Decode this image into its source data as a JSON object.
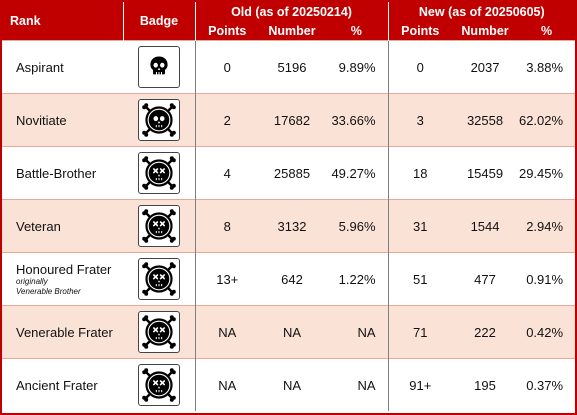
{
  "header": {
    "rank": "Rank",
    "badge": "Badge",
    "old": "Old (as of 20250214)",
    "new": "New (as of 20250605)",
    "points": "Points",
    "number": "Number",
    "percent": "%"
  },
  "rows": [
    {
      "rank": "Aspirant",
      "note_1": "",
      "note_2": "",
      "badge_icon": "skull-badge-icon",
      "old_points": "0",
      "old_number": "5196",
      "old_percent": "9.89%",
      "new_points": "0",
      "new_number": "2037",
      "new_percent": "3.88%"
    },
    {
      "rank": "Novitiate",
      "note_1": "",
      "note_2": "",
      "badge_icon": "skull-crossbones-ring-badge-icon",
      "old_points": "2",
      "old_number": "17682",
      "old_percent": "33.66%",
      "new_points": "3",
      "new_number": "32558",
      "new_percent": "62.02%"
    },
    {
      "rank": "Battle-Brother",
      "note_1": "",
      "note_2": "",
      "badge_icon": "skull-crossbones-ring-badge-icon",
      "old_points": "4",
      "old_number": "25885",
      "old_percent": "49.27%",
      "new_points": "18",
      "new_number": "15459",
      "new_percent": "29.45%"
    },
    {
      "rank": "Veteran",
      "note_1": "",
      "note_2": "",
      "badge_icon": "skull-crossbones-ring-badge-icon",
      "old_points": "8",
      "old_number": "3132",
      "old_percent": "5.96%",
      "new_points": "31",
      "new_number": "1544",
      "new_percent": "2.94%"
    },
    {
      "rank": "Honoured Frater",
      "note_1": "originally",
      "note_2": "Venerable Brother",
      "badge_icon": "skull-crossbones-ring-badge-icon",
      "old_points": "13+",
      "old_number": "642",
      "old_percent": "1.22%",
      "new_points": "51",
      "new_number": "477",
      "new_percent": "0.91%"
    },
    {
      "rank": "Venerable Frater",
      "note_1": "",
      "note_2": "",
      "badge_icon": "skull-crossbones-ring-badge-icon",
      "old_points": "NA",
      "old_number": "NA",
      "old_percent": "NA",
      "new_points": "71",
      "new_number": "222",
      "new_percent": "0.42%"
    },
    {
      "rank": "Ancient Frater",
      "note_1": "",
      "note_2": "",
      "badge_icon": "skull-crossbones-ring-badge-icon",
      "old_points": "NA",
      "old_number": "NA",
      "old_percent": "NA",
      "new_points": "91+",
      "new_number": "195",
      "new_percent": "0.37%"
    }
  ],
  "colors": {
    "header_bg": "#c00000",
    "header_text": "#ffffff",
    "alt_row_bg": "#fbe2d7",
    "border": "#c00000"
  }
}
